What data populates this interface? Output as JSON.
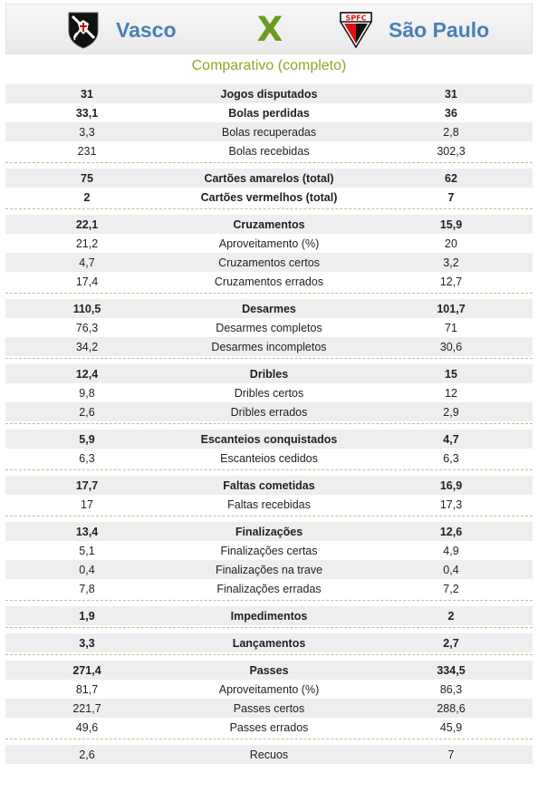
{
  "header": {
    "home_team": "Vasco",
    "away_team": "São Paulo",
    "versus": "X",
    "away_crest_text": "SPFC"
  },
  "subtitle": "Comparativo (completo)",
  "colors": {
    "team_name": "#4a7fb8",
    "versus": "#6a9a1f",
    "subtitle": "#8aaa2a",
    "row_shade": "#eeeeee",
    "divider": "#b9c58a"
  },
  "groups": [
    {
      "rows": [
        {
          "home": "31",
          "label": "Jogos disputados",
          "away": "31",
          "bold": true
        },
        {
          "home": "33,1",
          "label": "Bolas perdidas",
          "away": "36",
          "bold": true
        },
        {
          "home": "3,3",
          "label": "Bolas recuperadas",
          "away": "2,8",
          "bold": false
        },
        {
          "home": "231",
          "label": "Bolas recebidas",
          "away": "302,3",
          "bold": false
        }
      ]
    },
    {
      "rows": [
        {
          "home": "75",
          "label": "Cartões amarelos (total)",
          "away": "62",
          "bold": true
        },
        {
          "home": "2",
          "label": "Cartões vermelhos (total)",
          "away": "7",
          "bold": true
        }
      ]
    },
    {
      "rows": [
        {
          "home": "22,1",
          "label": "Cruzamentos",
          "away": "15,9",
          "bold": true
        },
        {
          "home": "21,2",
          "label": "Aproveitamento (%)",
          "away": "20",
          "bold": false
        },
        {
          "home": "4,7",
          "label": "Cruzamentos certos",
          "away": "3,2",
          "bold": false
        },
        {
          "home": "17,4",
          "label": "Cruzamentos errados",
          "away": "12,7",
          "bold": false
        }
      ]
    },
    {
      "rows": [
        {
          "home": "110,5",
          "label": "Desarmes",
          "away": "101,7",
          "bold": true
        },
        {
          "home": "76,3",
          "label": "Desarmes completos",
          "away": "71",
          "bold": false
        },
        {
          "home": "34,2",
          "label": "Desarmes incompletos",
          "away": "30,6",
          "bold": false
        }
      ]
    },
    {
      "rows": [
        {
          "home": "12,4",
          "label": "Dribles",
          "away": "15",
          "bold": true
        },
        {
          "home": "9,8",
          "label": "Dribles certos",
          "away": "12",
          "bold": false
        },
        {
          "home": "2,6",
          "label": "Dribles errados",
          "away": "2,9",
          "bold": false
        }
      ]
    },
    {
      "rows": [
        {
          "home": "5,9",
          "label": "Escanteios conquistados",
          "away": "4,7",
          "bold": true
        },
        {
          "home": "6,3",
          "label": "Escanteios cedidos",
          "away": "6,3",
          "bold": false
        }
      ]
    },
    {
      "rows": [
        {
          "home": "17,7",
          "label": "Faltas cometidas",
          "away": "16,9",
          "bold": true
        },
        {
          "home": "17",
          "label": "Faltas recebidas",
          "away": "17,3",
          "bold": false
        }
      ]
    },
    {
      "rows": [
        {
          "home": "13,4",
          "label": "Finalizações",
          "away": "12,6",
          "bold": true
        },
        {
          "home": "5,1",
          "label": "Finalizações certas",
          "away": "4,9",
          "bold": false
        },
        {
          "home": "0,4",
          "label": "Finalizações na trave",
          "away": "0,4",
          "bold": false
        },
        {
          "home": "7,8",
          "label": "Finalizações erradas",
          "away": "7,2",
          "bold": false
        }
      ]
    },
    {
      "rows": [
        {
          "home": "1,9",
          "label": "Impedimentos",
          "away": "2",
          "bold": true
        }
      ]
    },
    {
      "rows": [
        {
          "home": "3,3",
          "label": "Lançamentos",
          "away": "2,7",
          "bold": true
        }
      ]
    },
    {
      "rows": [
        {
          "home": "271,4",
          "label": "Passes",
          "away": "334,5",
          "bold": true
        },
        {
          "home": "81,7",
          "label": "Aproveitamento (%)",
          "away": "86,3",
          "bold": false
        },
        {
          "home": "221,7",
          "label": "Passes certos",
          "away": "288,6",
          "bold": false
        },
        {
          "home": "49,6",
          "label": "Passes errados",
          "away": "45,9",
          "bold": false
        }
      ]
    },
    {
      "rows": [
        {
          "home": "2,6",
          "label": "Recuos",
          "away": "7",
          "bold": false
        }
      ]
    }
  ]
}
